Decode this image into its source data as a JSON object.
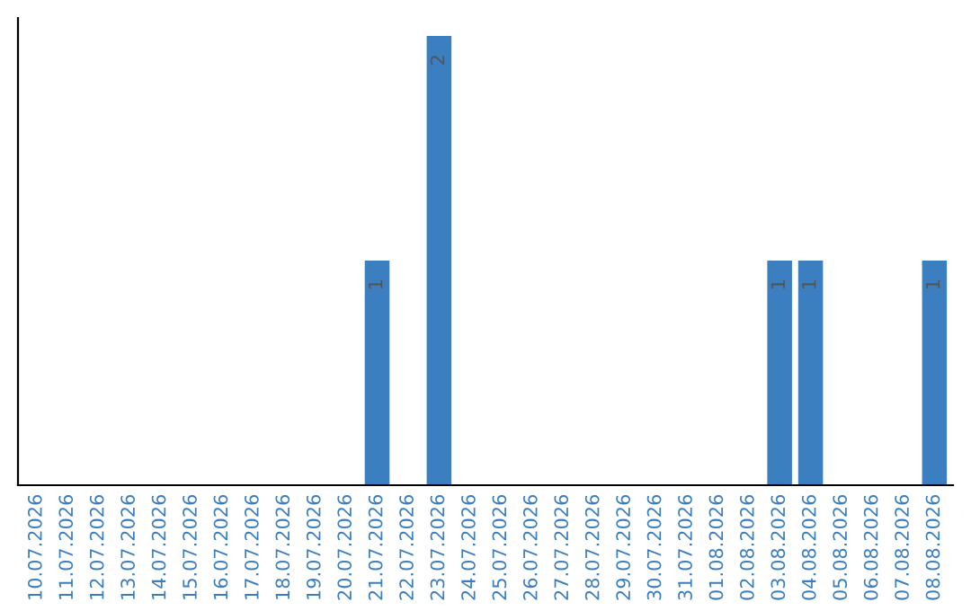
{
  "chart_data": {
    "type": "bar",
    "categories": [
      "10.07.2026",
      "11.07.2026",
      "12.07.2026",
      "13.07.2026",
      "14.07.2026",
      "15.07.2026",
      "16.07.2026",
      "17.07.2026",
      "18.07.2026",
      "19.07.2026",
      "20.07.2026",
      "21.07.2026",
      "22.07.2026",
      "23.07.2026",
      "24.07.2026",
      "25.07.2026",
      "26.07.2026",
      "27.07.2026",
      "28.07.2026",
      "29.07.2026",
      "30.07.2026",
      "31.07.2026",
      "01.08.2026",
      "02.08.2026",
      "03.08.2026",
      "04.08.2026",
      "05.08.2026",
      "06.08.2026",
      "07.08.2026",
      "08.08.2026"
    ],
    "values": [
      0,
      0,
      0,
      0,
      0,
      0,
      0,
      0,
      0,
      0,
      0,
      1,
      0,
      2,
      0,
      0,
      0,
      0,
      0,
      0,
      0,
      0,
      0,
      0,
      1,
      1,
      0,
      0,
      0,
      1
    ],
    "value_labels": [
      null,
      null,
      null,
      null,
      null,
      null,
      null,
      null,
      null,
      null,
      null,
      "1",
      null,
      "2",
      null,
      null,
      null,
      null,
      null,
      null,
      null,
      null,
      null,
      null,
      "1",
      "1",
      null,
      null,
      null,
      "1"
    ],
    "color": "#3c7fc1",
    "tick_labels": "x",
    "grid": false,
    "legend": false
  }
}
